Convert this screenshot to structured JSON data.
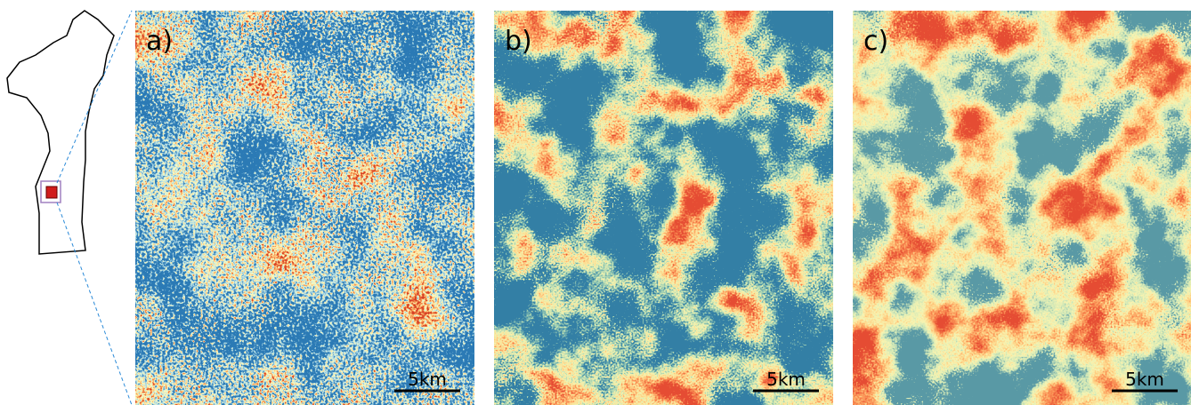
{
  "panels": [
    {
      "label": "a)",
      "scale": "5km"
    },
    {
      "label": "b)",
      "scale": "5km"
    },
    {
      "label": "c)",
      "scale": "5km"
    }
  ]
}
